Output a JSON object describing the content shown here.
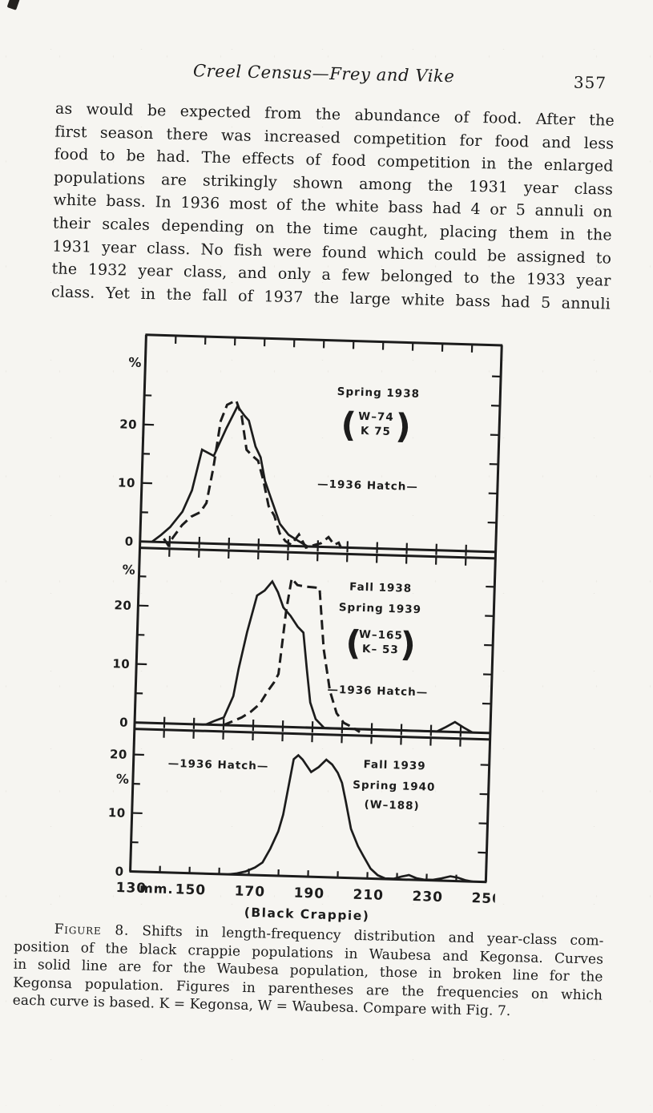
{
  "header": {
    "title": "Creel Census—Frey and Vike",
    "page_number": "357"
  },
  "body": {
    "lines": [
      "as would be expected from the abundance of food.  After the",
      "first season there was increased competition for food and less",
      "food to be had.  The effects of food competition in the enlarged",
      "populations are strikingly shown among the 1931 year class",
      "white bass.  In 1936 most of the white bass had 4 or 5 annuli on",
      "their scales depending on the time caught, placing them in the",
      "1931 year class.  No fish were found which could be assigned to",
      "the 1932 year class, and only a few belonged to the 1933 year",
      "class.  Yet in the fall of 1937 the large white bass had 5 annuli"
    ]
  },
  "caption": {
    "label": "Figure 8.",
    "lines": [
      "Shifts in length-frequency distribution and year-class com-",
      "position of the black crappie populations in Waubesa and Kegonsa.  Curves",
      "in solid line are for the Waubesa population, those in broken line for the",
      "Kegonsa population.  Figures in parentheses are the frequencies on which",
      "each curve is based.  K = Kegonsa, W = Waubesa.  Compare with Fig. 7."
    ]
  },
  "chart_data": {
    "type": "line",
    "xlabel": "(Black Crappie)",
    "x_unit": "mm.",
    "x_range": [
      130,
      250
    ],
    "x_ticks": [
      140,
      150,
      160,
      170,
      180,
      190,
      200,
      210,
      220,
      230,
      240
    ],
    "x_tick_labels": [
      130,
      150,
      170,
      190,
      210,
      230,
      250
    ],
    "ylabel": "%",
    "ink_color": "#1c1c1c",
    "panels": [
      {
        "title_lines": [
          "Spring 1938"
        ],
        "sample_sizes": {
          "bracketed": true,
          "lines": [
            "W–74",
            "K  75"
          ]
        },
        "annotation": "—1936 Hatch—",
        "ylim": [
          0,
          35
        ],
        "y_tick_labels": [
          0,
          10,
          20
        ],
        "y_minor_ticks": [
          5,
          15,
          25
        ],
        "series": [
          {
            "name": "Waubesa",
            "line": "solid",
            "points": [
              [
                134,
                0
              ],
              [
                137,
                1.2
              ],
              [
                140,
                2.6
              ],
              [
                144,
                5.3
              ],
              [
                147,
                9
              ],
              [
                150,
                16
              ],
              [
                152,
                15.5
              ],
              [
                154,
                15
              ],
              [
                158,
                19.8
              ],
              [
                161.5,
                23.6
              ],
              [
                164,
                22
              ],
              [
                165.5,
                21.2
              ],
              [
                168,
                16.8
              ],
              [
                169.8,
                15
              ],
              [
                171.5,
                11
              ],
              [
                173,
                9
              ],
              [
                174.5,
                7
              ],
              [
                177,
                3.7
              ],
              [
                180,
                1.9
              ],
              [
                183,
                1
              ],
              [
                186.5,
                0
              ]
            ]
          },
          {
            "name": "Kegonsa",
            "line": "broken",
            "points": [
              [
                138,
                0.6
              ],
              [
                139.5,
                -0.5
              ],
              [
                141,
                0.8
              ],
              [
                144,
                3
              ],
              [
                147,
                4.5
              ],
              [
                150,
                5.3
              ],
              [
                152,
                6.9
              ],
              [
                154,
                13
              ],
              [
                156,
                21
              ],
              [
                158,
                23.8
              ],
              [
                161,
                24.6
              ],
              [
                163,
                22
              ],
              [
                165,
                16.2
              ],
              [
                167,
                15.2
              ],
              [
                169,
                14.4
              ],
              [
                171,
                11
              ],
              [
                173,
                6.7
              ],
              [
                175,
                5.1
              ],
              [
                177,
                2.1
              ],
              [
                179,
                0.8
              ],
              [
                181,
                0.2
              ],
              [
                183.5,
                2
              ],
              [
                186,
                -0.2
              ],
              [
                189,
                0.3
              ],
              [
                191,
                0.6
              ],
              [
                193.5,
                1.7
              ],
              [
                195.5,
                0.4
              ],
              [
                197,
                0.8
              ],
              [
                198.5,
                -0.8
              ]
            ]
          }
        ]
      },
      {
        "title_lines": [
          "Fall 1938",
          "Spring 1939"
        ],
        "sample_sizes": {
          "bracketed": true,
          "lines": [
            "W–165",
            "K– 53"
          ]
        },
        "annotation": "—1936 Hatch—",
        "ylim": [
          0,
          30
        ],
        "y_tick_labels": [
          0,
          10,
          20
        ],
        "y_minor_ticks": [
          5,
          15,
          25
        ],
        "series": [
          {
            "name": "Waubesa",
            "line": "solid",
            "points": [
              [
                154,
                0
              ],
              [
                157,
                0.7
              ],
              [
                160,
                1.3
              ],
              [
                163,
                5
              ],
              [
                164.5,
                9.7
              ],
              [
                167,
                16
              ],
              [
                170,
                22.3
              ],
              [
                172.5,
                23.2
              ],
              [
                175,
                24.8
              ],
              [
                177,
                23
              ],
              [
                179,
                20.4
              ],
              [
                181.5,
                19
              ],
              [
                184,
                17.2
              ],
              [
                186,
                16.2
              ],
              [
                187.5,
                10
              ],
              [
                189,
                4.3
              ],
              [
                191,
                1.5
              ],
              [
                194,
                0
              ],
              [
                232,
                0
              ],
              [
                235,
                0.8
              ],
              [
                238,
                1.7
              ],
              [
                241,
                0.8
              ],
              [
                244,
                0
              ]
            ]
          },
          {
            "name": "Kegonsa",
            "line": "broken",
            "points": [
              [
                160,
                0
              ],
              [
                163,
                0.7
              ],
              [
                166,
                1.4
              ],
              [
                169,
                2.4
              ],
              [
                172,
                3.8
              ],
              [
                174.5,
                6
              ],
              [
                176.5,
                7.5
              ],
              [
                178,
                9
              ],
              [
                180,
                20
              ],
              [
                181.5,
                25.4
              ],
              [
                183.5,
                24.3
              ],
              [
                186,
                24.1
              ],
              [
                189,
                24
              ],
              [
                191,
                23.9
              ],
              [
                193,
                13.5
              ],
              [
                195.5,
                6.4
              ],
              [
                198,
                2.6
              ],
              [
                200.5,
                1
              ],
              [
                203,
                0.4
              ],
              [
                206,
                -0.5
              ]
            ]
          }
        ]
      },
      {
        "title_lines": [
          "Fall 1939",
          "Spring 1940"
        ],
        "sample_sizes": {
          "bracketed": false,
          "lines": [
            "(W–188)"
          ]
        },
        "annotation": "—1936 Hatch—",
        "ylim": [
          0,
          24.5
        ],
        "y_tick_labels": [
          0,
          10,
          20
        ],
        "y_minor_ticks": [
          5,
          15
        ],
        "series": [
          {
            "name": "Waubesa",
            "line": "solid",
            "points": [
              [
                163,
                0
              ],
              [
                166,
                0.2
              ],
              [
                169,
                0.6
              ],
              [
                172,
                1.3
              ],
              [
                174.5,
                2.2
              ],
              [
                177,
                4.6
              ],
              [
                179.5,
                7.6
              ],
              [
                181,
                10.5
              ],
              [
                184,
                20
              ],
              [
                185.5,
                20.7
              ],
              [
                187,
                20
              ],
              [
                190,
                17.9
              ],
              [
                192.5,
                18.8
              ],
              [
                195,
                20.1
              ],
              [
                197,
                19.3
              ],
              [
                199,
                17.9
              ],
              [
                200.5,
                16.2
              ],
              [
                202,
                13
              ],
              [
                204,
                8.4
              ],
              [
                206.5,
                5.5
              ],
              [
                208.5,
                3.8
              ],
              [
                211,
                1.7
              ],
              [
                213.5,
                0.6
              ],
              [
                216,
                0.1
              ],
              [
                219,
                0.1
              ],
              [
                221.5,
                0.5
              ],
              [
                224,
                0.8
              ],
              [
                226.5,
                0.3
              ],
              [
                229,
                0.1
              ],
              [
                232,
                0.1
              ],
              [
                235,
                0.4
              ],
              [
                238,
                0.8
              ],
              [
                240.5,
                0.6
              ],
              [
                243,
                0.2
              ],
              [
                245.5,
                0
              ]
            ]
          }
        ]
      }
    ]
  }
}
